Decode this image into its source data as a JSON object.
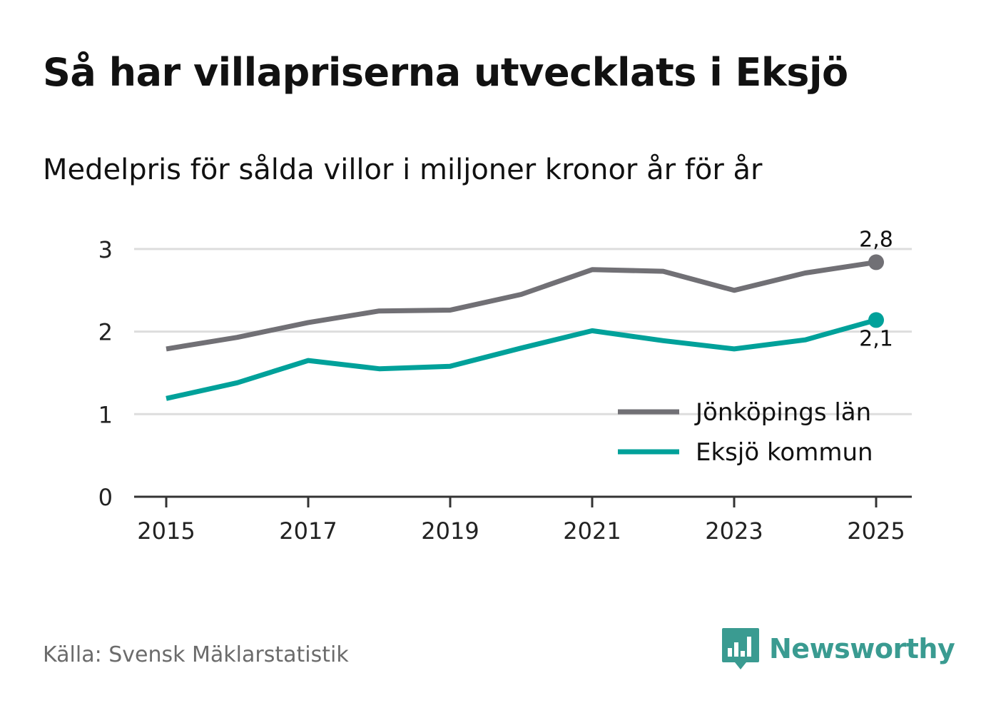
{
  "title": "Så har villapriserna utvecklats i Eksjö",
  "subtitle": "Medelpris för sålda villor i miljoner kronor år för år",
  "source": "Källa: Svensk Mäklarstatistik",
  "brand": {
    "name": "Newsworthy",
    "icon": "newsworthy-logo-icon",
    "color": "#3a9b91"
  },
  "chart_data": {
    "type": "line",
    "title": "Så har villapriserna utvecklats i Eksjö",
    "subtitle": "Medelpris för sålda villor i miljoner kronor år för år",
    "xlabel": "",
    "ylabel": "",
    "x": [
      2015,
      2016,
      2017,
      2018,
      2019,
      2020,
      2021,
      2022,
      2023,
      2024,
      2025
    ],
    "x_ticks": [
      "2015",
      "2017",
      "2019",
      "2021",
      "2023",
      "2025"
    ],
    "y_ticks": [
      "0",
      "1",
      "2",
      "3"
    ],
    "xlim": [
      2015,
      2025
    ],
    "ylim": [
      0,
      3.3
    ],
    "grid": true,
    "legend_position": "bottom-right",
    "series": [
      {
        "name": "Jönköpings län",
        "color": "#717075",
        "values": [
          1.79,
          1.93,
          2.11,
          2.25,
          2.26,
          2.45,
          2.75,
          2.73,
          2.5,
          2.71,
          2.84
        ],
        "end_label": "2,8"
      },
      {
        "name": "Eksjö kommun",
        "color": "#00a19a",
        "values": [
          1.19,
          1.38,
          1.65,
          1.55,
          1.58,
          1.8,
          2.01,
          1.89,
          1.79,
          1.9,
          2.14
        ],
        "end_label": "2,1"
      }
    ]
  }
}
